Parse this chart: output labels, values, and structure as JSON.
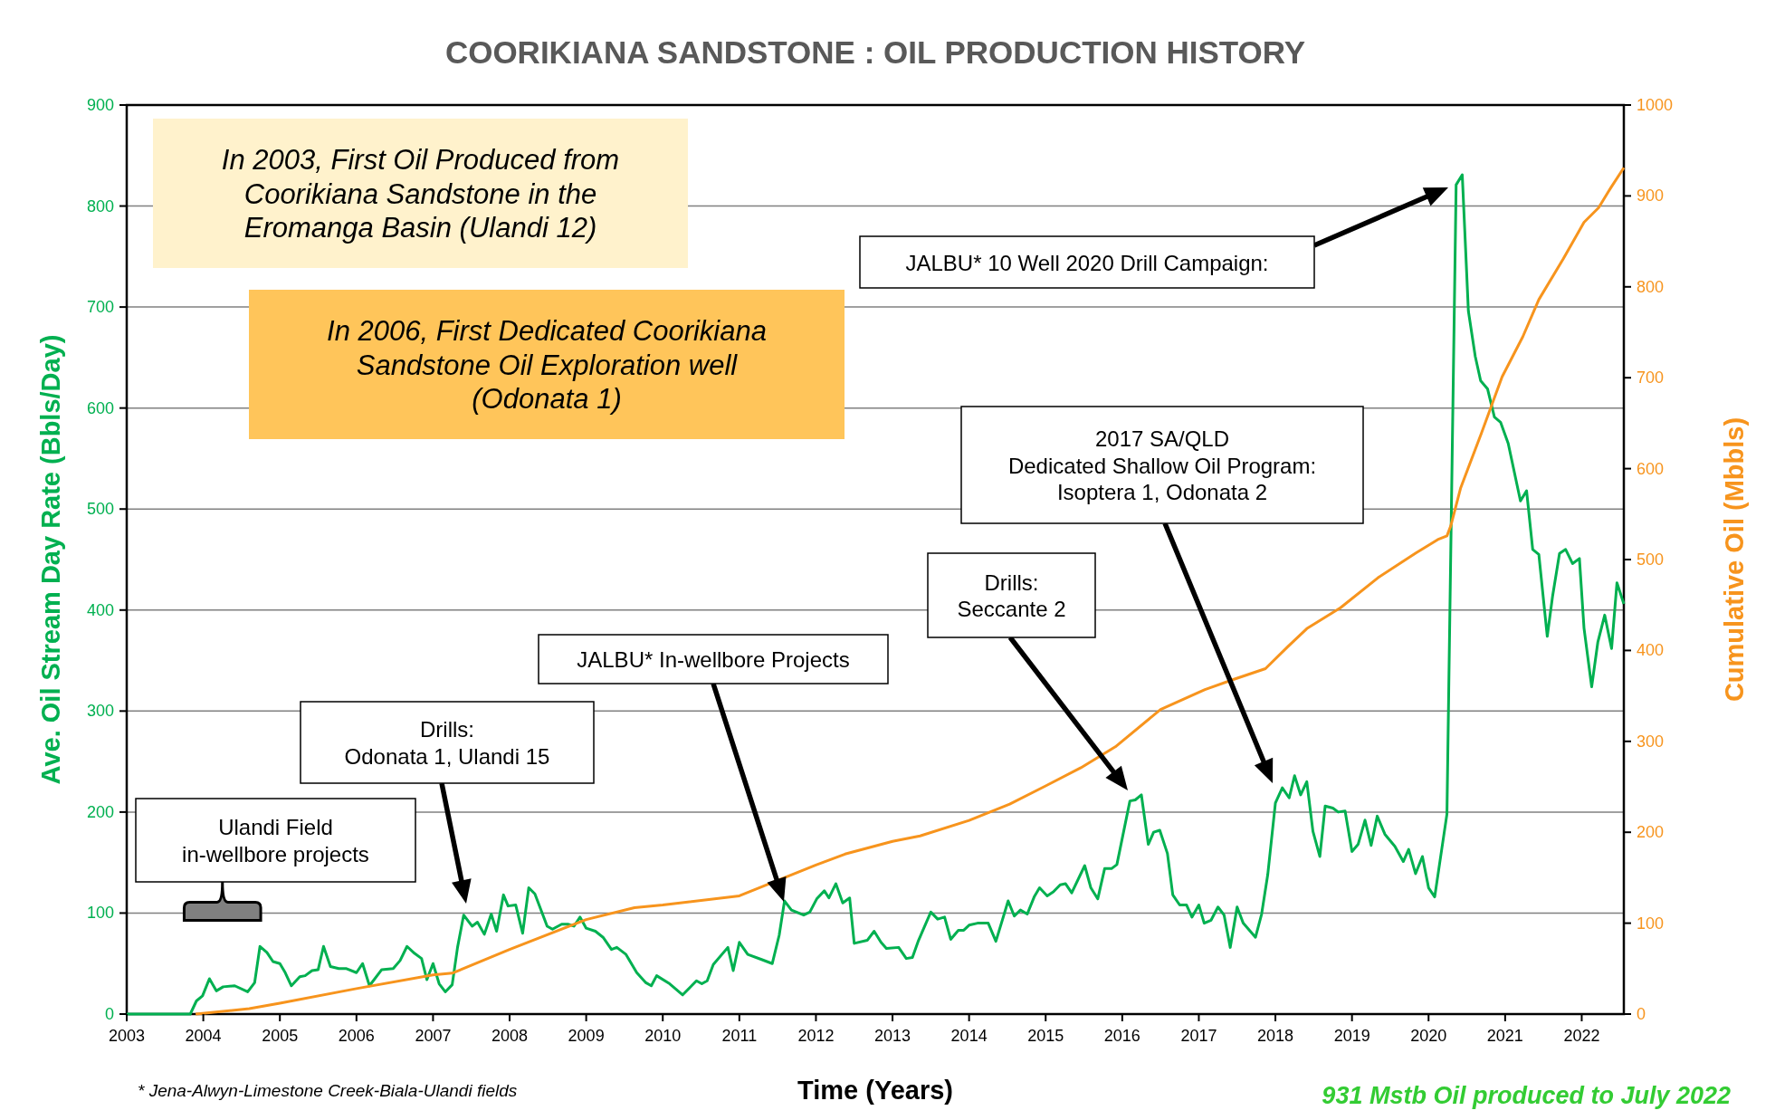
{
  "chart_data": {
    "type": "line",
    "title": "COORIKIANA SANDSTONE : OIL PRODUCTION HISTORY",
    "xlabel": "Time (Years)",
    "ylabel": "Ave. Oil Stream Day Rate (Bbls/Day)",
    "y2label": "Cumulative Oil (Mbbls)",
    "xlim": [
      2003,
      2022.55
    ],
    "xticks": [
      2003,
      2004,
      2005,
      2006,
      2007,
      2008,
      2009,
      2010,
      2011,
      2012,
      2013,
      2014,
      2015,
      2016,
      2017,
      2018,
      2019,
      2020,
      2021,
      2022
    ],
    "ylim": [
      0,
      900
    ],
    "yticks": [
      0,
      100,
      200,
      300,
      400,
      500,
      600,
      700,
      800,
      900
    ],
    "y2lim": [
      0,
      1000
    ],
    "y2ticks": [
      0,
      100,
      200,
      300,
      400,
      500,
      600,
      700,
      800,
      900,
      1000
    ],
    "grid": "y",
    "marker": "none",
    "line_style": "solid",
    "series": [
      {
        "color": "#00b050",
        "x": [
          2003,
          2003.83,
          2003.91,
          2003.99,
          2004.08,
          2004.17,
          2004.26,
          2004.41,
          2004.58,
          2004.67,
          2004.74,
          2004.83,
          2004.91,
          2005,
          2005.07,
          2005.15,
          2005.26,
          2005.33,
          2005.42,
          2005.5,
          2005.57,
          2005.66,
          2005.77,
          2005.87,
          2006,
          2006.08,
          2006.17,
          2006.33,
          2006.48,
          2006.57,
          2006.66,
          2006.76,
          2006.85,
          2006.92,
          2007,
          2007.08,
          2007.16,
          2007.25,
          2007.32,
          2007.4,
          2007.51,
          2007.58,
          2007.67,
          2007.76,
          2007.83,
          2007.92,
          2007.98,
          2008.08,
          2008.17,
          2008.25,
          2008.33,
          2008.49,
          2008.56,
          2008.68,
          2008.76,
          2008.84,
          2008.92,
          2009,
          2009.12,
          2009.22,
          2009.33,
          2009.4,
          2009.52,
          2009.66,
          2009.78,
          2009.85,
          2009.92,
          2010.09,
          2010.26,
          2010.44,
          2010.51,
          2010.58,
          2010.66,
          2010.85,
          2010.92,
          2011,
          2011.11,
          2011.29,
          2011.43,
          2011.52,
          2011.59,
          2011.68,
          2011.84,
          2011.92,
          2012.01,
          2012.11,
          2012.17,
          2012.26,
          2012.35,
          2012.44,
          2012.5,
          2012.67,
          2012.76,
          2012.85,
          2012.92,
          2013.08,
          2013.18,
          2013.26,
          2013.34,
          2013.5,
          2013.59,
          2013.68,
          2013.76,
          2013.86,
          2013.93,
          2014,
          2014.11,
          2014.25,
          2014.35,
          2014.51,
          2014.59,
          2014.67,
          2014.76,
          2014.85,
          2014.92,
          2015.02,
          2015.1,
          2015.19,
          2015.26,
          2015.34,
          2015.51,
          2015.59,
          2015.68,
          2015.77,
          2015.86,
          2015.93,
          2016.1,
          2016.17,
          2016.25,
          2016.34,
          2016.41,
          2016.49,
          2016.59,
          2016.66,
          2016.75,
          2016.84,
          2016.91,
          2017,
          2017.07,
          2017.16,
          2017.25,
          2017.33,
          2017.41,
          2017.5,
          2017.58,
          2017.74,
          2017.82,
          2017.9,
          2018,
          2018.09,
          2018.18,
          2018.25,
          2018.33,
          2018.41,
          2018.49,
          2018.58,
          2018.65,
          2018.75,
          2018.82,
          2018.91,
          2019,
          2019.08,
          2019.17,
          2019.25,
          2019.33,
          2019.43,
          2019.56,
          2019.67,
          2019.74,
          2019.83,
          2019.92,
          2020,
          2020.08,
          2020.24,
          2020.36,
          2020.44,
          2020.52,
          2020.61,
          2020.68,
          2020.77,
          2020.86,
          2020.94,
          2021.04,
          2021.2,
          2021.28,
          2021.36,
          2021.44,
          2021.55,
          2021.62,
          2021.71,
          2021.79,
          2021.88,
          2021.97,
          2022.03,
          2022.13,
          2022.21,
          2022.3,
          2022.39,
          2022.46,
          2022.55
        ],
        "values": [
          0,
          0,
          13,
          18,
          35,
          23,
          27,
          28,
          22,
          31,
          67,
          61,
          52,
          50,
          41,
          28,
          37,
          38,
          43,
          44,
          67,
          47,
          45,
          45,
          41,
          50,
          28,
          44,
          45,
          53,
          67,
          60,
          55,
          34,
          50,
          30,
          22,
          29,
          66,
          98,
          87,
          91,
          79,
          99,
          82,
          118,
          107,
          108,
          80,
          125,
          119,
          87,
          84,
          89,
          89,
          87,
          96,
          85,
          82,
          76,
          64,
          66,
          59,
          41,
          31,
          28,
          38,
          30,
          19,
          33,
          30,
          33,
          49,
          66,
          43,
          71,
          59,
          54,
          50,
          78,
          112,
          103,
          98,
          101,
          114,
          122,
          115,
          129,
          110,
          115,
          70,
          73,
          82,
          71,
          65,
          66,
          55,
          56,
          73,
          101,
          94,
          96,
          74,
          83,
          83,
          88,
          90,
          90,
          72,
          112,
          97,
          103,
          99,
          116,
          125,
          117,
          121,
          128,
          129,
          120,
          147,
          125,
          114,
          144,
          144,
          148,
          211,
          212,
          217,
          168,
          180,
          182,
          159,
          118,
          108,
          108,
          96,
          108,
          90,
          93,
          106,
          98,
          66,
          106,
          90,
          76,
          99,
          138,
          209,
          224,
          214,
          236,
          217,
          230,
          181,
          156,
          206,
          204,
          200,
          201,
          161,
          168,
          192,
          167,
          196,
          178,
          166,
          151,
          163,
          139,
          156,
          125,
          116,
          198,
          821,
          831,
          696,
          651,
          627,
          619,
          591,
          586,
          565,
          508,
          518,
          460,
          455,
          374,
          414,
          456,
          460,
          446,
          451,
          382,
          324,
          368,
          395,
          362,
          427,
          406
        ]
      },
      {
        "color": "#f7941d",
        "axis": "y2",
        "x": [
          2003.9,
          2004.6,
          2005,
          2006,
          2007,
          2007.25,
          2008,
          2009,
          2009.63,
          2010,
          2011,
          2012,
          2012.38,
          2013,
          2013.36,
          2014,
          2014.53,
          2015,
          2015.46,
          2015.91,
          2016.5,
          2017.08,
          2017.45,
          2017.87,
          2018.16,
          2018.41,
          2018.85,
          2019.34,
          2019.83,
          2020.12,
          2020.24,
          2020.29,
          2020.42,
          2020.69,
          2020.96,
          2021.23,
          2021.44,
          2021.76,
          2022.03,
          2022.22,
          2022.38,
          2022.55
        ],
        "values": [
          0,
          6,
          12,
          28,
          43,
          45,
          71,
          104,
          117,
          120,
          130,
          164,
          176,
          190,
          196,
          213,
          231,
          251,
          271,
          294,
          335,
          357,
          368,
          380,
          404,
          424,
          447,
          480,
          507,
          522,
          526,
          537,
          579,
          639,
          701,
          745,
          786,
          831,
          871,
          887,
          909,
          931
        ]
      }
    ],
    "annotations": [
      "In 2003, First Oil Produced from\nCoorikiana Sandstone in the\nEromanga Basin (Ulandi 12)",
      "In 2006, First Dedicated Coorikiana\nSandstone Oil Exploration well\n(Odonata 1)",
      "Ulandi Field\nin-wellbore projects",
      "Drills:\nOdonata 1, Ulandi 15",
      "JALBU* In-wellbore Projects",
      "Drills:\nSeccante 2",
      "2017 SA/QLD\nDedicated Shallow Oil Program:\nIsoptera 1, Odonata 2",
      "JALBU* 10 Well 2020 Drill Campaign:",
      "* Jena-Alwyn-Limestone Creek-Biala-Ulandi fields",
      "931 Mstb Oil produced to July 2022"
    ]
  }
}
